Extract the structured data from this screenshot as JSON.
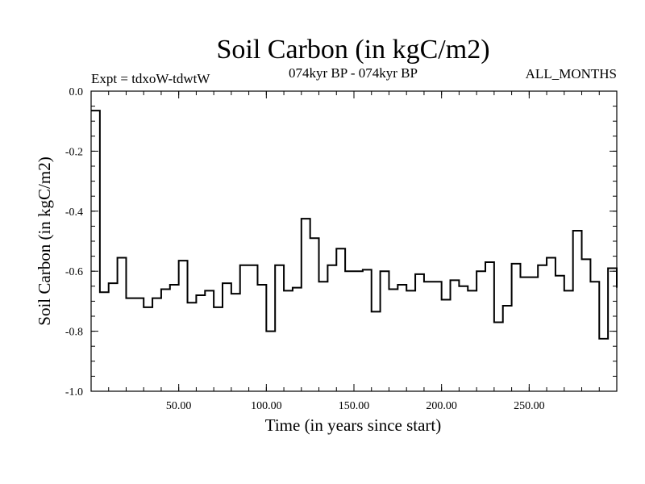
{
  "chart_data": {
    "type": "line",
    "title": "Soil Carbon (in kgC/m2)",
    "subtitle": "074kyr BP - 074kyr BP",
    "experiment_label": "Expt = tdxoW-tdwtW",
    "months_label": "ALL_MONTHS",
    "xlabel": "Time (in years since start)",
    "ylabel": "Soil Carbon (in kgC/m2)",
    "xlim": [
      0,
      300
    ],
    "ylim": [
      -1.0,
      0.0
    ],
    "x_ticks": [
      "50.00",
      "100.00",
      "150.00",
      "200.00",
      "250.00"
    ],
    "x_tick_values": [
      50,
      100,
      150,
      200,
      250
    ],
    "y_ticks": [
      "0.0",
      "-0.2",
      "-0.4",
      "-0.6",
      "-0.8",
      "-1.0"
    ],
    "y_tick_values": [
      0.0,
      -0.2,
      -0.4,
      -0.6,
      -0.8,
      -1.0
    ],
    "step": 5,
    "series": [
      {
        "style": "step",
        "color": "#000000",
        "values": [
          -0.065,
          -0.67,
          -0.64,
          -0.555,
          -0.69,
          -0.69,
          -0.72,
          -0.69,
          -0.66,
          -0.645,
          -0.565,
          -0.705,
          -0.68,
          -0.665,
          -0.72,
          -0.64,
          -0.675,
          -0.58,
          -0.58,
          -0.645,
          -0.8,
          -0.58,
          -0.665,
          -0.655,
          -0.425,
          -0.49,
          -0.635,
          -0.58,
          -0.525,
          -0.6,
          -0.6,
          -0.595,
          -0.735,
          -0.6,
          -0.66,
          -0.645,
          -0.665,
          -0.61,
          -0.635,
          -0.635,
          -0.695,
          -0.63,
          -0.65,
          -0.665,
          -0.6,
          -0.57,
          -0.77,
          -0.715,
          -0.575,
          -0.62,
          -0.62,
          -0.58,
          -0.555,
          -0.615,
          -0.665,
          -0.465,
          -0.56,
          -0.635,
          -0.825,
          -0.59,
          -0.655
        ]
      }
    ]
  }
}
